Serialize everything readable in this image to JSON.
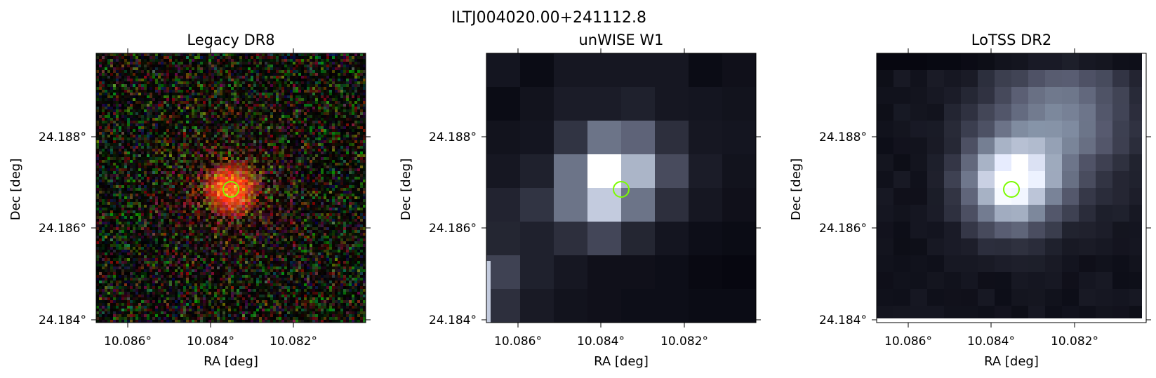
{
  "figure": {
    "title": "ILTJ004020.00+241112.8",
    "marker_color": "#7cfc00"
  },
  "panels": [
    {
      "title": "Legacy DR8",
      "xlabel": "RA [deg]",
      "ylabel": "Dec [deg]",
      "xticks": [
        "10.086°",
        "10.084°",
        "10.082°"
      ],
      "yticks": [
        "24.188°",
        "24.186°",
        "24.184°"
      ]
    },
    {
      "title": "unWISE W1",
      "xlabel": "RA [deg]",
      "ylabel": "Dec [deg]",
      "xticks": [
        "10.086°",
        "10.084°",
        "10.082°"
      ],
      "yticks": [
        "24.188°",
        "24.186°",
        "24.184°"
      ]
    },
    {
      "title": "LoTSS DR2",
      "xlabel": "RA [deg]",
      "ylabel": "Dec [deg]",
      "xticks": [
        "10.086°",
        "10.084°",
        "10.082°"
      ],
      "yticks": [
        "24.188°",
        "24.186°",
        "24.184°"
      ]
    }
  ]
}
